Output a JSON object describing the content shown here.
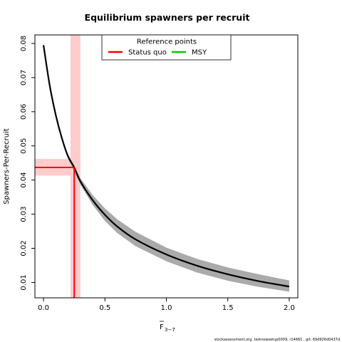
{
  "chart_data": {
    "type": "line",
    "title": "Equilibrium spawners per recruit",
    "ylabel": "Spawners-Per-Recruit",
    "xlabel": "F",
    "xlabel_subscript": "3−7",
    "xlim": [
      -0.07,
      2.07
    ],
    "ylim": [
      0.0055,
      0.0825
    ],
    "xticks": [
      0.0,
      0.5,
      1.0,
      1.5,
      2.0
    ],
    "xtick_labels": [
      "0.0",
      "0.5",
      "1.0",
      "1.5",
      "2.0"
    ],
    "yticks": [
      0.01,
      0.02,
      0.03,
      0.04,
      0.05,
      0.06,
      0.07,
      0.08
    ],
    "ytick_labels": [
      "0.01",
      "0.02",
      "0.03",
      "0.04",
      "0.05",
      "0.06",
      "0.07",
      "0.08"
    ],
    "grid": false,
    "legend": {
      "title": "Reference points",
      "placement": "top-center",
      "entries": [
        {
          "label": "Status quo",
          "color": "#ff0000"
        },
        {
          "label": "MSY",
          "color": "#00cc00"
        }
      ]
    },
    "series": [
      {
        "x": [
          0.0,
          0.05,
          0.1,
          0.15,
          0.2,
          0.25,
          0.3,
          0.4,
          0.5,
          0.6,
          0.75,
          1.0,
          1.25,
          1.5,
          1.75,
          2.0
        ],
        "values": [
          0.0795,
          0.0678,
          0.059,
          0.0522,
          0.0469,
          0.0437,
          0.0396,
          0.0341,
          0.0298,
          0.0264,
          0.0226,
          0.0182,
          0.0149,
          0.0124,
          0.0104,
          0.0088
        ],
        "color": "#000000"
      }
    ],
    "uncertainty_band": {
      "x": [
        0.2,
        0.3,
        0.4,
        0.5,
        0.6,
        0.75,
        1.0,
        1.25,
        1.5,
        1.75,
        2.0
      ],
      "lower": [
        0.0462,
        0.0387,
        0.0327,
        0.028,
        0.0245,
        0.0206,
        0.0162,
        0.0129,
        0.0105,
        0.0087,
        0.0073
      ],
      "upper": [
        0.0476,
        0.0406,
        0.0356,
        0.0317,
        0.0285,
        0.0248,
        0.0202,
        0.0169,
        0.0144,
        0.0124,
        0.0106
      ],
      "color": "#aaaaaa"
    },
    "reference_points": [
      {
        "name": "Status quo",
        "color": "#ff0000",
        "band_color": "#ffcccc",
        "x": 0.25,
        "y": 0.0437,
        "x_range": [
          0.22,
          0.3
        ],
        "y_range": [
          0.0413,
          0.0462
        ]
      }
    ]
  },
  "footer": "stockassessment.org, testnewsetup0009, r14681 , git: 69d926d0437d"
}
